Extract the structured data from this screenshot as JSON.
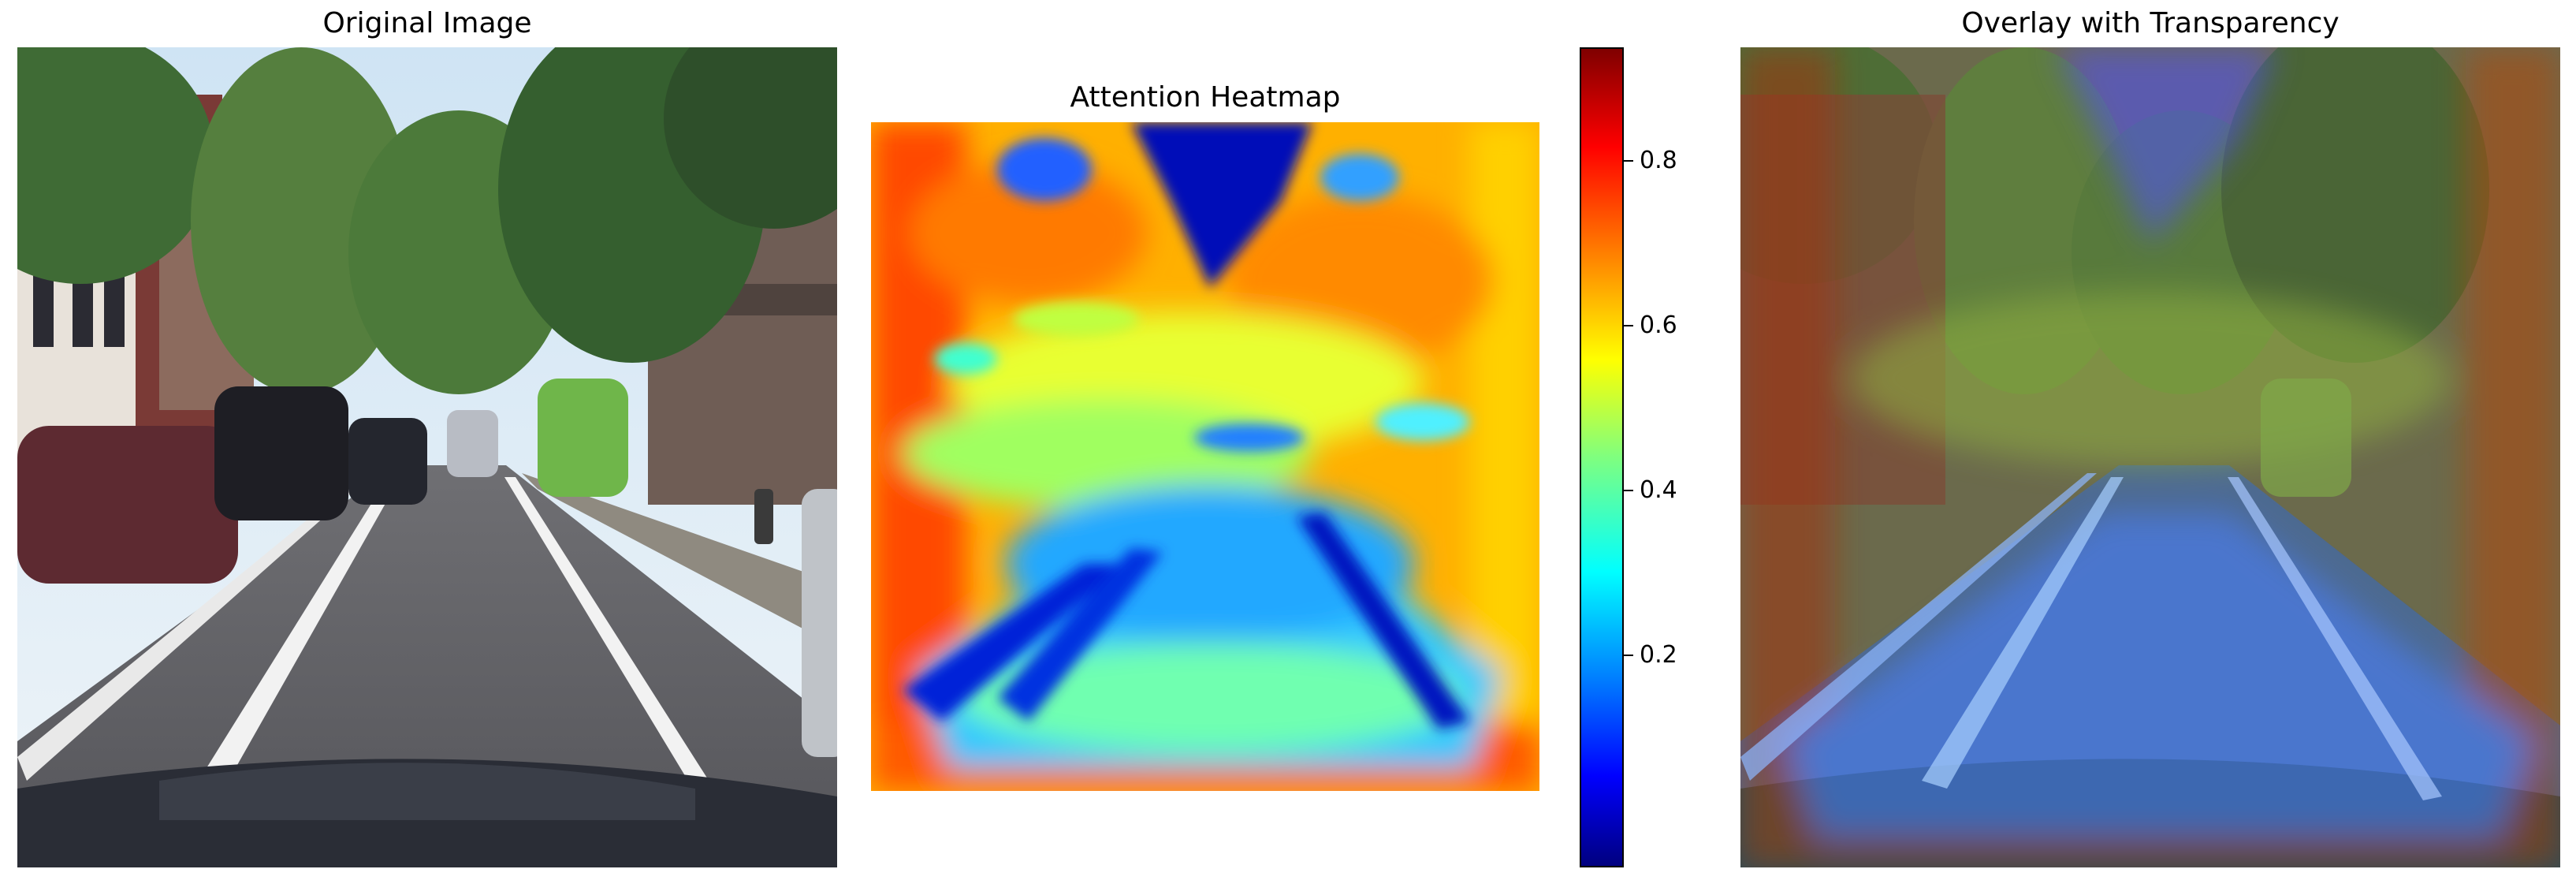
{
  "panels": {
    "original": {
      "title": "Original Image"
    },
    "heatmap": {
      "title": "Attention Heatmap"
    },
    "overlay": {
      "title": "Overlay with Transparency"
    }
  },
  "colorbar": {
    "colormap": "jet",
    "ticks": [
      "0.8",
      "0.6",
      "0.4",
      "0.2"
    ]
  },
  "colors": {
    "jet_low": "#00007f",
    "jet_mid": "#7fff7f",
    "jet_high": "#7f0000"
  }
}
